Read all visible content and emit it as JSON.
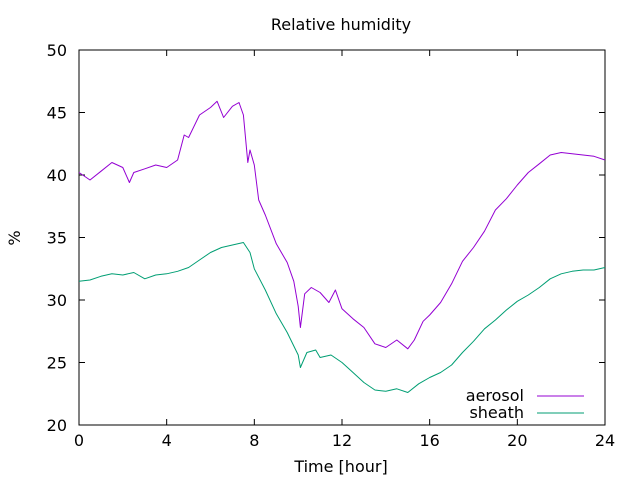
{
  "chart_data": {
    "type": "line",
    "title": "Relative humidity",
    "xlabel": "Time [hour]",
    "ylabel": "%",
    "xlim": [
      0,
      24
    ],
    "ylim": [
      20,
      50
    ],
    "x_ticks": [
      0,
      4,
      8,
      12,
      16,
      20,
      24
    ],
    "y_ticks": [
      20,
      25,
      30,
      35,
      40,
      45,
      50
    ],
    "x_tick_labels": [
      "0",
      "4",
      "8",
      "12",
      "16",
      "20",
      "24"
    ],
    "y_tick_labels": [
      "20",
      "25",
      "30",
      "35",
      "40",
      "45",
      "50"
    ],
    "grid": false,
    "legend_position": "bottom-right",
    "series": [
      {
        "name": "aerosol",
        "color": "#9400d3",
        "points": [
          [
            0,
            40.2
          ],
          [
            0.5,
            39.6
          ],
          [
            1,
            40.3
          ],
          [
            1.5,
            41.0
          ],
          [
            2,
            40.6
          ],
          [
            2.3,
            39.4
          ],
          [
            2.5,
            40.2
          ],
          [
            3,
            40.5
          ],
          [
            3.5,
            40.8
          ],
          [
            4,
            40.6
          ],
          [
            4.5,
            41.2
          ],
          [
            4.8,
            43.2
          ],
          [
            5,
            43.0
          ],
          [
            5.5,
            44.8
          ],
          [
            6,
            45.4
          ],
          [
            6.3,
            45.9
          ],
          [
            6.6,
            44.6
          ],
          [
            7,
            45.5
          ],
          [
            7.3,
            45.8
          ],
          [
            7.5,
            44.8
          ],
          [
            7.7,
            41.0
          ],
          [
            7.8,
            42.0
          ],
          [
            8,
            40.8
          ],
          [
            8.2,
            38.0
          ],
          [
            8.5,
            36.8
          ],
          [
            9,
            34.5
          ],
          [
            9.5,
            33.0
          ],
          [
            9.8,
            31.5
          ],
          [
            10,
            29.5
          ],
          [
            10.1,
            27.8
          ],
          [
            10.3,
            30.5
          ],
          [
            10.6,
            31.0
          ],
          [
            11,
            30.6
          ],
          [
            11.4,
            29.8
          ],
          [
            11.7,
            30.8
          ],
          [
            12,
            29.3
          ],
          [
            12.5,
            28.5
          ],
          [
            13,
            27.8
          ],
          [
            13.5,
            26.5
          ],
          [
            14,
            26.2
          ],
          [
            14.5,
            26.8
          ],
          [
            15,
            26.1
          ],
          [
            15.3,
            26.8
          ],
          [
            15.7,
            28.3
          ],
          [
            16,
            28.8
          ],
          [
            16.5,
            29.8
          ],
          [
            17,
            31.3
          ],
          [
            17.5,
            33.1
          ],
          [
            18,
            34.2
          ],
          [
            18.5,
            35.5
          ],
          [
            19,
            37.2
          ],
          [
            19.5,
            38.1
          ],
          [
            20,
            39.2
          ],
          [
            20.5,
            40.2
          ],
          [
            21,
            40.9
          ],
          [
            21.5,
            41.6
          ],
          [
            22,
            41.8
          ],
          [
            22.5,
            41.7
          ],
          [
            23,
            41.6
          ],
          [
            23.5,
            41.5
          ],
          [
            24,
            41.2
          ]
        ]
      },
      {
        "name": "sheath",
        "color": "#009e73",
        "points": [
          [
            0,
            31.5
          ],
          [
            0.5,
            31.6
          ],
          [
            1,
            31.9
          ],
          [
            1.5,
            32.1
          ],
          [
            2,
            32.0
          ],
          [
            2.5,
            32.2
          ],
          [
            3,
            31.7
          ],
          [
            3.5,
            32.0
          ],
          [
            4,
            32.1
          ],
          [
            4.5,
            32.3
          ],
          [
            5,
            32.6
          ],
          [
            5.5,
            33.2
          ],
          [
            6,
            33.8
          ],
          [
            6.5,
            34.2
          ],
          [
            7,
            34.4
          ],
          [
            7.5,
            34.6
          ],
          [
            7.8,
            33.8
          ],
          [
            8,
            32.5
          ],
          [
            8.5,
            30.8
          ],
          [
            9,
            28.9
          ],
          [
            9.5,
            27.4
          ],
          [
            10,
            25.6
          ],
          [
            10.1,
            24.6
          ],
          [
            10.4,
            25.8
          ],
          [
            10.8,
            26.0
          ],
          [
            11,
            25.4
          ],
          [
            11.5,
            25.6
          ],
          [
            12,
            25.0
          ],
          [
            12.5,
            24.2
          ],
          [
            13,
            23.4
          ],
          [
            13.5,
            22.8
          ],
          [
            14,
            22.7
          ],
          [
            14.5,
            22.9
          ],
          [
            15,
            22.6
          ],
          [
            15.5,
            23.3
          ],
          [
            16,
            23.8
          ],
          [
            16.5,
            24.2
          ],
          [
            17,
            24.8
          ],
          [
            17.5,
            25.8
          ],
          [
            18,
            26.7
          ],
          [
            18.5,
            27.7
          ],
          [
            19,
            28.4
          ],
          [
            19.5,
            29.2
          ],
          [
            20,
            29.9
          ],
          [
            20.5,
            30.4
          ],
          [
            21,
            31.0
          ],
          [
            21.5,
            31.7
          ],
          [
            22,
            32.1
          ],
          [
            22.5,
            32.3
          ],
          [
            23,
            32.4
          ],
          [
            23.5,
            32.4
          ],
          [
            24,
            32.6
          ]
        ]
      }
    ]
  }
}
